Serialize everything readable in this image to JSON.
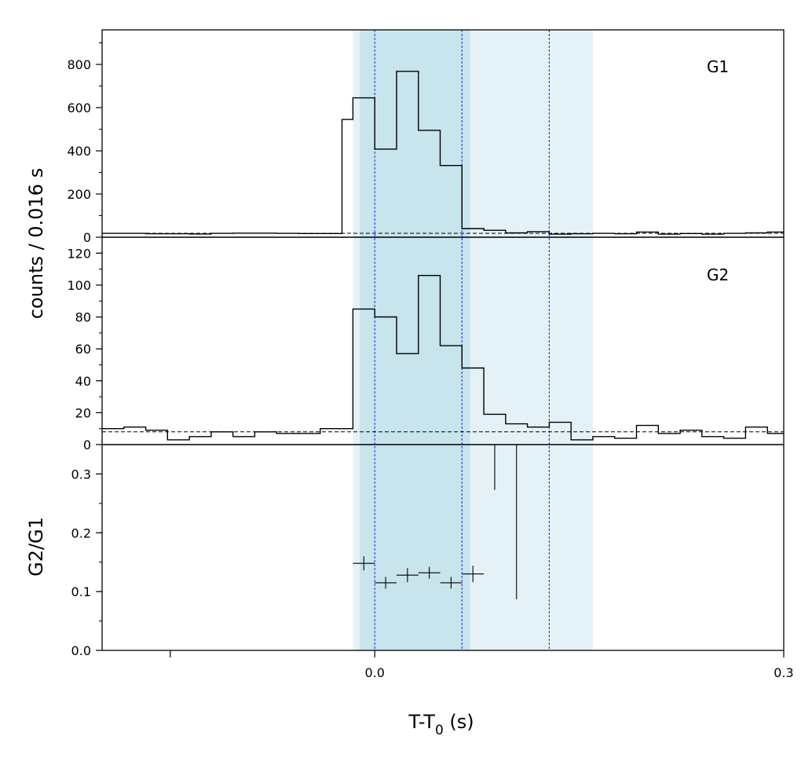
{
  "chart_data": [
    {
      "type": "step",
      "panel": "G1",
      "label": "G1",
      "ylim": [
        0,
        960
      ],
      "yticks": [
        0,
        200,
        400,
        600,
        800
      ],
      "ytick_labels": [
        "0",
        "200",
        "400",
        "600",
        "800"
      ],
      "bin_width": 0.016,
      "bin_edges": [
        -0.2,
        -0.184,
        -0.168,
        -0.152,
        -0.136,
        -0.12,
        -0.104,
        -0.088,
        -0.072,
        -0.056,
        -0.04,
        -0.024,
        -0.016,
        0.0,
        0.016,
        0.032,
        0.048,
        0.064,
        0.08,
        0.096,
        0.112,
        0.128,
        0.144,
        0.16,
        0.176,
        0.192,
        0.208,
        0.224,
        0.24,
        0.256,
        0.272,
        0.288,
        0.3
      ],
      "counts": [
        18,
        18,
        16,
        16,
        15,
        18,
        19,
        19,
        18,
        17,
        17,
        545,
        645,
        408,
        768,
        495,
        332,
        40,
        32,
        20,
        26,
        14,
        16,
        18,
        16,
        24,
        14,
        17,
        14,
        18,
        20,
        24
      ],
      "background_level": 18
    },
    {
      "type": "step",
      "panel": "G2",
      "label": "G2",
      "ylim": [
        0,
        130
      ],
      "yticks": [
        0,
        20,
        40,
        60,
        80,
        100,
        120
      ],
      "ytick_labels": [
        "0",
        "20",
        "40",
        "60",
        "80",
        "100",
        "120"
      ],
      "bin_width": 0.016,
      "bin_edges": [
        -0.2,
        -0.184,
        -0.168,
        -0.152,
        -0.136,
        -0.12,
        -0.104,
        -0.088,
        -0.072,
        -0.056,
        -0.04,
        -0.024,
        -0.016,
        0.0,
        0.016,
        0.032,
        0.048,
        0.064,
        0.08,
        0.096,
        0.112,
        0.128,
        0.144,
        0.16,
        0.176,
        0.192,
        0.208,
        0.224,
        0.24,
        0.256,
        0.272,
        0.288,
        0.3
      ],
      "counts": [
        10,
        11,
        9,
        3,
        5,
        8,
        5,
        8,
        7,
        7,
        10,
        10,
        85,
        80,
        57,
        106,
        62,
        48,
        19,
        13,
        11,
        14,
        3,
        5,
        4,
        12,
        7,
        9,
        5,
        4,
        11,
        7
      ],
      "background_level": 8
    },
    {
      "type": "errorbar",
      "panel": "ratio",
      "ylabel": "G2/G1",
      "ylim": [
        0,
        0.35
      ],
      "yticks": [
        0.0,
        0.1,
        0.2,
        0.3
      ],
      "ytick_labels": [
        "0.0",
        "0.1",
        "0.2",
        "0.3"
      ],
      "points": [
        {
          "x": -0.008,
          "y": 0.148,
          "xerr": 0.008,
          "yerr": 0.012
        },
        {
          "x": 0.008,
          "y": 0.115,
          "xerr": 0.008,
          "yerr": 0.01
        },
        {
          "x": 0.024,
          "y": 0.128,
          "xerr": 0.008,
          "yerr": 0.012
        },
        {
          "x": 0.04,
          "y": 0.132,
          "xerr": 0.008,
          "yerr": 0.01
        },
        {
          "x": 0.056,
          "y": 0.115,
          "xerr": 0.008,
          "yerr": 0.01
        },
        {
          "x": 0.072,
          "y": 0.13,
          "xerr": 0.008,
          "yerr": 0.014
        }
      ],
      "error_lines": [
        {
          "x": 0.088,
          "y_low": 0.273,
          "y_high": 0.35
        },
        {
          "x": 0.104,
          "y_low": 0.087,
          "y_high": 0.35
        }
      ]
    }
  ],
  "xaxis": {
    "range": [
      -0.2,
      0.3
    ],
    "ticks": [
      -0.15,
      0.0,
      0.3
    ],
    "tick_labels": [
      "",
      "0.0",
      "0.3"
    ],
    "label": "T-T",
    "label_sub": "0",
    "label_suffix": " (s)"
  },
  "shared_ylabel": "counts /  0.016 s",
  "shaded_regions": [
    {
      "x0": -0.016,
      "x1": 0.16,
      "color": "#e4f2f7"
    },
    {
      "x0": -0.011,
      "x1": 0.07,
      "color": "#c8e4ec"
    }
  ],
  "vlines": [
    0.0,
    0.064,
    0.128
  ],
  "colors": {
    "vline": "#3344dd",
    "line": "#000000"
  }
}
